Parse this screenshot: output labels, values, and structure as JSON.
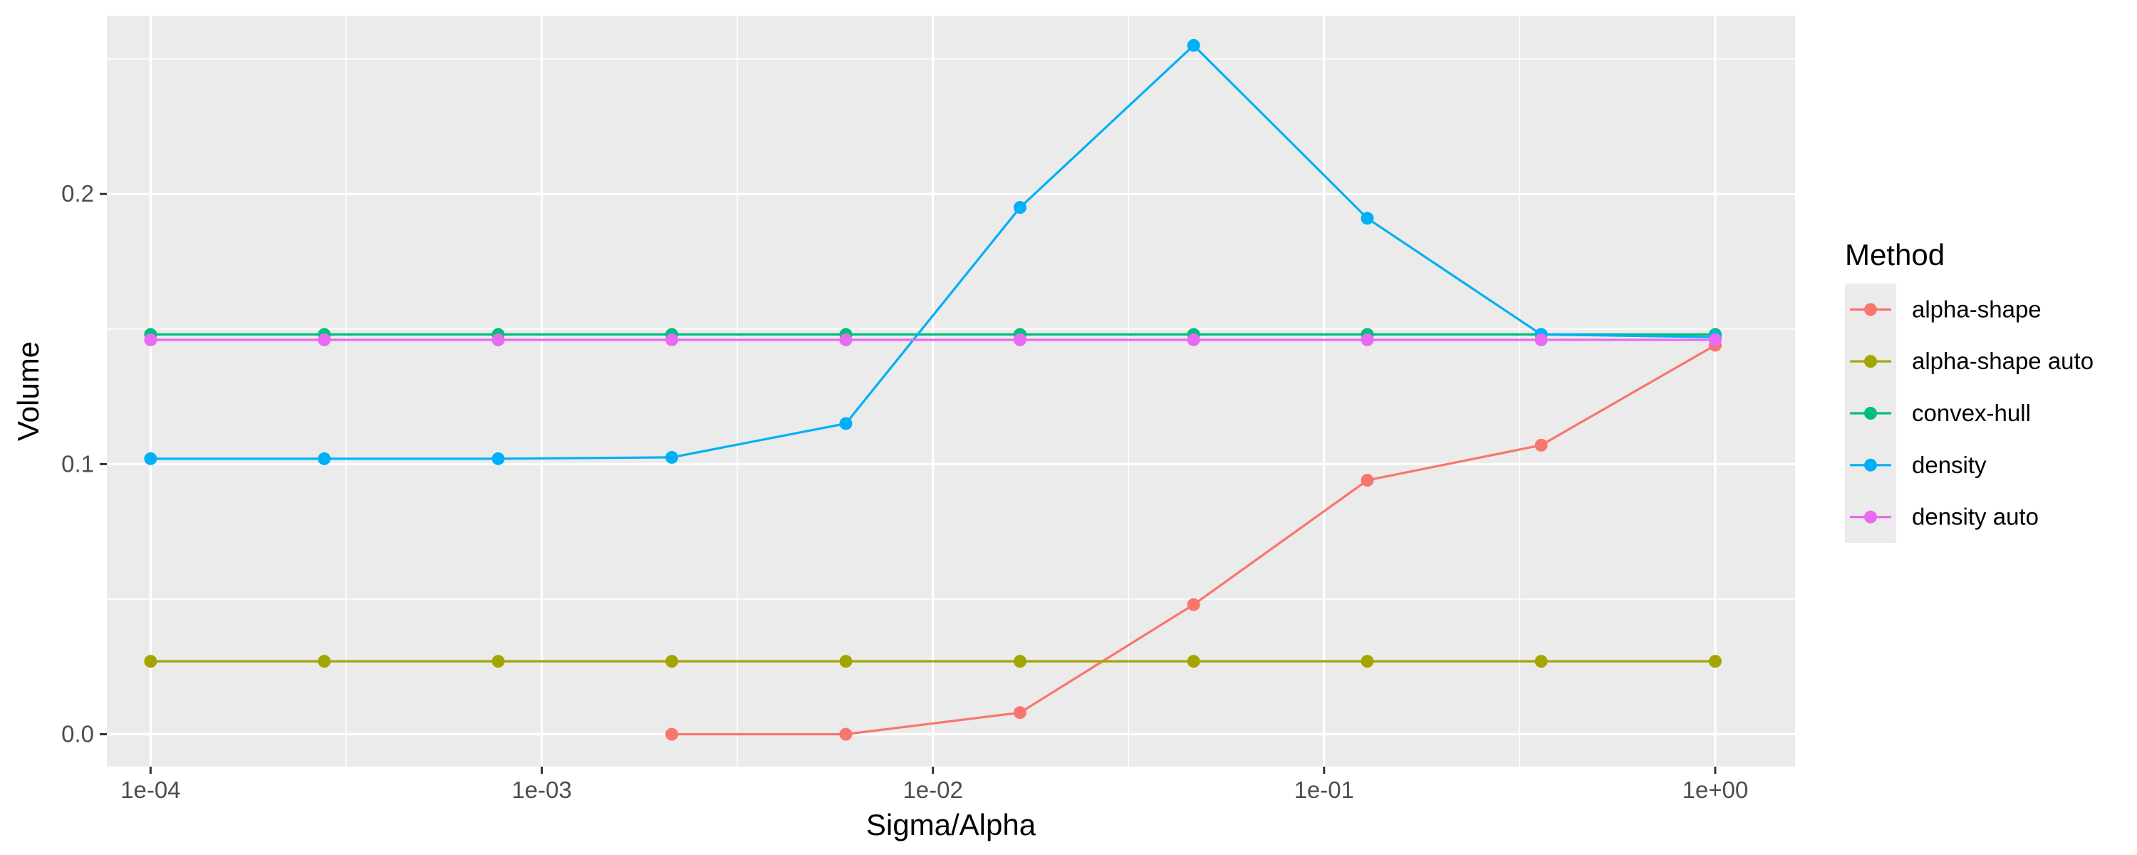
{
  "chart_data": {
    "type": "line",
    "xlabel": "Sigma/Alpha",
    "ylabel": "Volume",
    "x_scale": "log10",
    "xlim": [
      7.73e-05,
      1.6
    ],
    "ylim": [
      -0.012,
      0.266
    ],
    "x_ticks": [
      {
        "value": 0.0001,
        "label": "1e-04"
      },
      {
        "value": 0.001,
        "label": "1e-03"
      },
      {
        "value": 0.01,
        "label": "1e-02"
      },
      {
        "value": 0.1,
        "label": "1e-01"
      },
      {
        "value": 1,
        "label": "1e+00"
      }
    ],
    "y_ticks": [
      {
        "value": 0.0,
        "label": "0.0"
      },
      {
        "value": 0.1,
        "label": "0.1"
      },
      {
        "value": 0.2,
        "label": "0.2"
      }
    ],
    "grid": true,
    "legend": {
      "title": "Method",
      "position": "right"
    },
    "x": [
      0.0001,
      0.000278,
      0.000774,
      0.00215,
      0.00599,
      0.0167,
      0.0464,
      0.129,
      0.359,
      1.0
    ],
    "series": [
      {
        "name": "alpha-shape",
        "color": "#F8766D",
        "values": [
          null,
          null,
          null,
          0.0,
          0.0,
          0.008,
          0.048,
          0.094,
          0.107,
          0.144
        ]
      },
      {
        "name": "alpha-shape auto",
        "color": "#A3A500",
        "values": [
          0.027,
          0.027,
          0.027,
          0.027,
          0.027,
          0.027,
          0.027,
          0.027,
          0.027,
          0.027
        ]
      },
      {
        "name": "convex-hull",
        "color": "#00BF7D",
        "values": [
          0.148,
          0.148,
          0.148,
          0.148,
          0.148,
          0.148,
          0.148,
          0.148,
          0.148,
          0.148
        ]
      },
      {
        "name": "density",
        "color": "#00B0F6",
        "values": [
          0.102,
          0.102,
          0.102,
          0.1025,
          0.115,
          0.195,
          0.255,
          0.191,
          0.148,
          0.147
        ]
      },
      {
        "name": "density auto",
        "color": "#E76BF3",
        "values": [
          0.146,
          0.146,
          0.146,
          0.146,
          0.146,
          0.146,
          0.146,
          0.146,
          0.146,
          0.146
        ]
      }
    ]
  }
}
